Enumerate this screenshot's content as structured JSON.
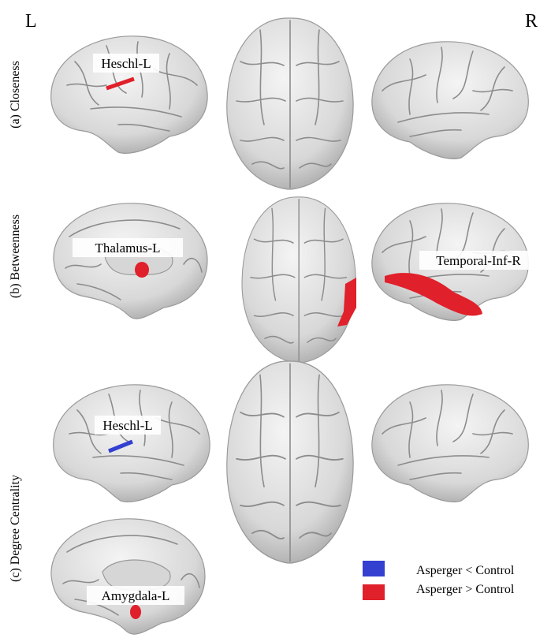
{
  "header": {
    "left": "L",
    "right": "R"
  },
  "rows": [
    {
      "label": "(a) Closeness",
      "regions": [
        "Heschl-L"
      ]
    },
    {
      "label": "(b) Betweenness",
      "regions": [
        "Thalamus-L",
        "Temporal-Inf-R"
      ]
    },
    {
      "label": "(c) Degree Centrality",
      "regions": [
        "Heschl-L",
        "Amygdala-L"
      ]
    }
  ],
  "legend": [
    {
      "label": "Asperger < Control",
      "color": "#3340d0"
    },
    {
      "label": "Asperger > Control",
      "color": "#e0202a"
    }
  ]
}
